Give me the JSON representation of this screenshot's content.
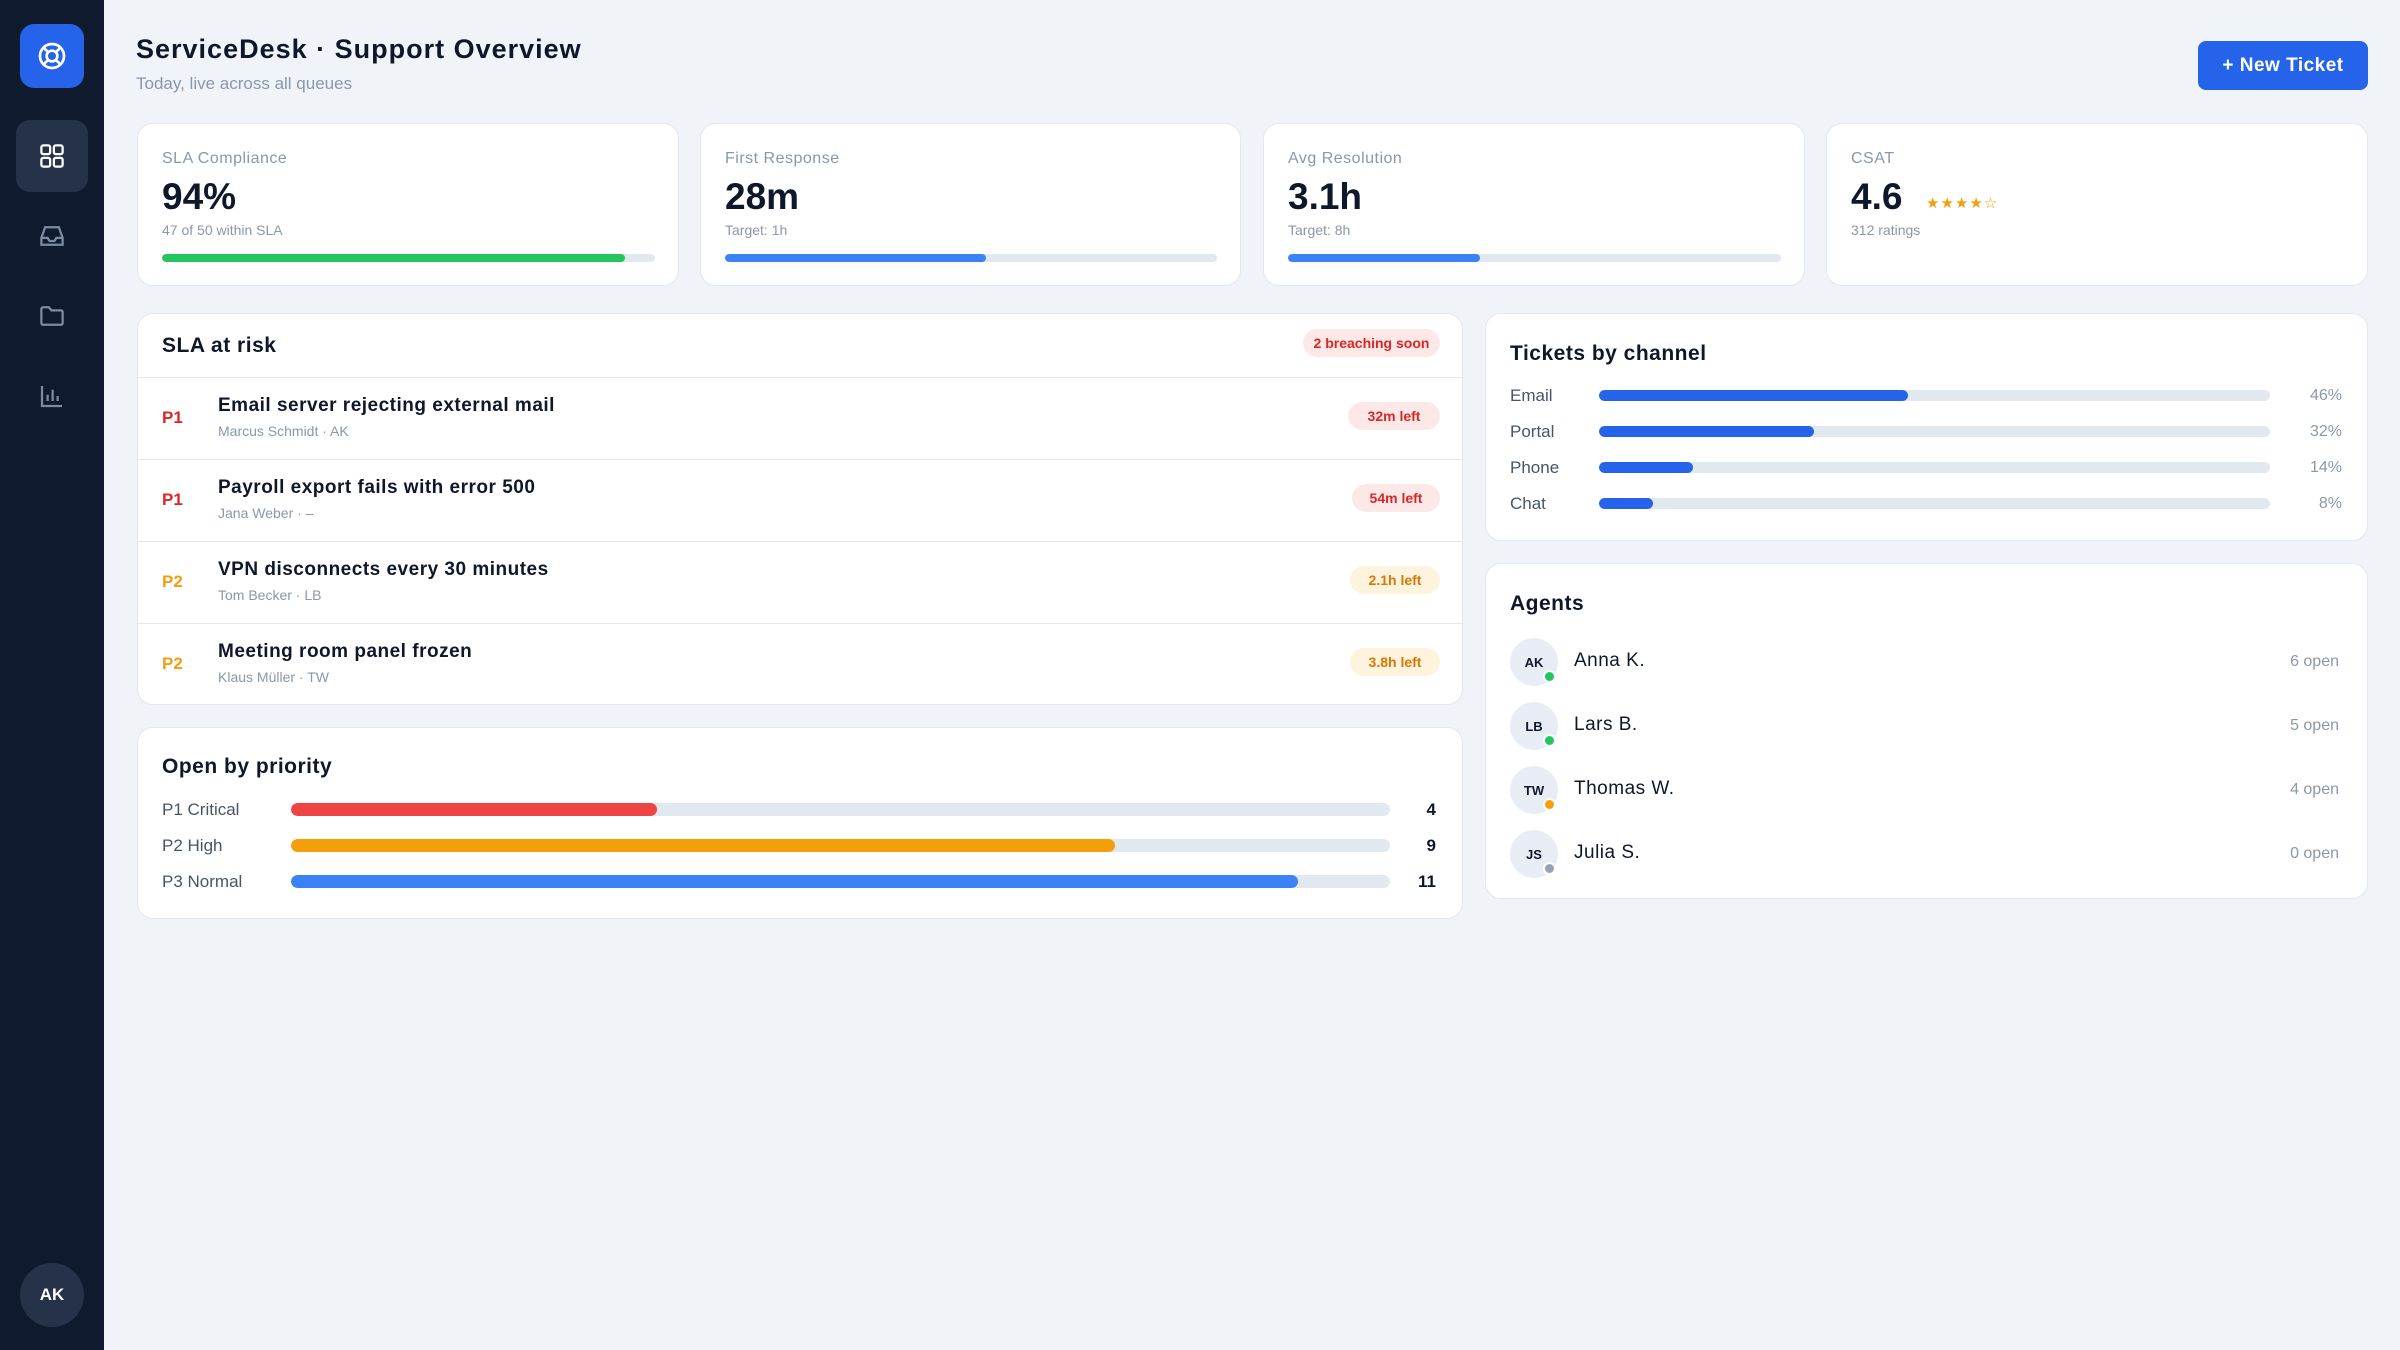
{
  "app": {
    "title": "ServiceDesk · Support Overview",
    "subtitle": "Today, live across all queues",
    "new_ticket_label": "+ New Ticket",
    "user_initials": "AK"
  },
  "sidebar": {
    "items": [
      {
        "name": "dashboard",
        "icon": "grid-icon",
        "active": true
      },
      {
        "name": "inbox",
        "icon": "inbox-icon",
        "active": false
      },
      {
        "name": "folders",
        "icon": "folder-icon",
        "active": false
      },
      {
        "name": "reports",
        "icon": "bar-chart-icon",
        "active": false
      }
    ]
  },
  "kpis": [
    {
      "label": "SLA Compliance",
      "value": "94%",
      "sub": "47 of 50 within SLA",
      "progress": 0.94,
      "color": "#22c55e"
    },
    {
      "label": "First Response",
      "value": "28m",
      "sub": "Target: 1h",
      "progress": 0.53,
      "color": "#3b82f6"
    },
    {
      "label": "Avg Resolution",
      "value": "3.1h",
      "sub": "Target: 8h",
      "progress": 0.39,
      "color": "#3b82f6"
    },
    {
      "label": "CSAT",
      "value": "4.6",
      "sub": "312 ratings",
      "stars": "★★★★☆",
      "rating": 4.6
    }
  ],
  "sla_risk": {
    "title": "SLA at risk",
    "badge": "2 breaching soon",
    "rows": [
      {
        "priority": "P1",
        "title": "Email server rejecting external mail",
        "meta": "Marcus Schmidt · AK",
        "time": "32m left",
        "tone": "red"
      },
      {
        "priority": "P1",
        "title": "Payroll export fails with error 500",
        "meta": "Jana Weber · –",
        "time": "54m left",
        "tone": "red"
      },
      {
        "priority": "P2",
        "title": "VPN disconnects every 30 minutes",
        "meta": "Tom Becker · LB",
        "time": "2.1h left",
        "tone": "amber"
      },
      {
        "priority": "P2",
        "title": "Meeting room panel frozen",
        "meta": "Klaus Müller · TW",
        "time": "3.8h left",
        "tone": "amber"
      }
    ]
  },
  "open_by_priority": {
    "title": "Open by priority",
    "max": 12,
    "rows": [
      {
        "label": "P1 Critical",
        "count": 4,
        "color": "#ef4444"
      },
      {
        "label": "P2 High",
        "count": 9,
        "color": "#f59e0b"
      },
      {
        "label": "P3 Normal",
        "count": 11,
        "color": "#3b82f6"
      }
    ]
  },
  "channels": {
    "title": "Tickets by channel",
    "rows": [
      {
        "label": "Email",
        "pct": "46%",
        "value": 46
      },
      {
        "label": "Portal",
        "pct": "32%",
        "value": 32
      },
      {
        "label": "Phone",
        "pct": "14%",
        "value": 14
      },
      {
        "label": "Chat",
        "pct": "8%",
        "value": 8
      }
    ],
    "color": "#2563eb"
  },
  "agents": {
    "title": "Agents",
    "rows": [
      {
        "initials": "AK",
        "name": "Anna K.",
        "open": "6 open",
        "status_color": "#22c55e"
      },
      {
        "initials": "LB",
        "name": "Lars B.",
        "open": "5 open",
        "status_color": "#22c55e"
      },
      {
        "initials": "TW",
        "name": "Thomas W.",
        "open": "4 open",
        "status_color": "#f59e0b"
      },
      {
        "initials": "JS",
        "name": "Julia S.",
        "open": "0 open",
        "status_color": "#94a3b8"
      }
    ]
  }
}
